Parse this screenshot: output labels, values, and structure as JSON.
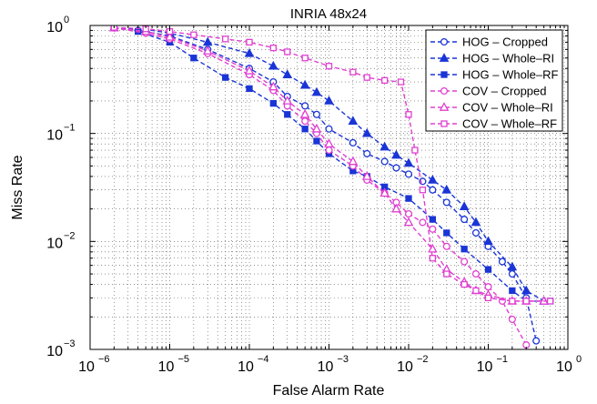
{
  "chart_data": {
    "type": "line",
    "title": "INRIA 48x24",
    "xlabel": "False Alarm Rate",
    "ylabel": "Miss Rate",
    "xscale": "log",
    "yscale": "log",
    "xlim": [
      1e-06,
      1
    ],
    "ylim": [
      0.001,
      1
    ],
    "grid": true,
    "legend_position": "top-right",
    "x_ticks": [
      {
        "base": "10",
        "exp": "−6",
        "value": 1e-06
      },
      {
        "base": "10",
        "exp": "−5",
        "value": 1e-05
      },
      {
        "base": "10",
        "exp": "−4",
        "value": 0.0001
      },
      {
        "base": "10",
        "exp": "−3",
        "value": 0.001
      },
      {
        "base": "10",
        "exp": "−2",
        "value": 0.01
      },
      {
        "base": "10",
        "exp": "−1",
        "value": 0.1
      },
      {
        "base": "10",
        "exp": "0",
        "value": 1
      }
    ],
    "y_ticks": [
      {
        "base": "10",
        "exp": "−3",
        "value": 0.001
      },
      {
        "base": "10",
        "exp": "−2",
        "value": 0.01
      },
      {
        "base": "10",
        "exp": "−1",
        "value": 0.1
      },
      {
        "base": "10",
        "exp": "0",
        "value": 1
      }
    ],
    "series": [
      {
        "name": "HOG – Cropped",
        "color": "#1a35d6",
        "marker": "circle-open",
        "x": [
          2e-06,
          4e-06,
          1e-05,
          3e-05,
          0.0001,
          0.0002,
          0.0003,
          0.0005,
          0.0007,
          0.001,
          0.002,
          0.003,
          0.005,
          0.007,
          0.01,
          0.015,
          0.02,
          0.03,
          0.05,
          0.07,
          0.1,
          0.15,
          0.2,
          0.3,
          0.4
        ],
        "y": [
          0.95,
          0.9,
          0.8,
          0.6,
          0.4,
          0.3,
          0.22,
          0.18,
          0.15,
          0.11,
          0.082,
          0.065,
          0.055,
          0.048,
          0.042,
          0.036,
          0.03,
          0.023,
          0.016,
          0.012,
          0.009,
          0.0065,
          0.005,
          0.003,
          0.0012
        ]
      },
      {
        "name": "HOG – Whole–RI",
        "color": "#1a35d6",
        "marker": "triangle",
        "x": [
          2e-06,
          5e-06,
          1e-05,
          3e-05,
          0.0001,
          0.0002,
          0.0003,
          0.0005,
          0.0007,
          0.001,
          0.002,
          0.003,
          0.005,
          0.007,
          0.01,
          0.02,
          0.03,
          0.05,
          0.07,
          0.1,
          0.2,
          0.3,
          0.5
        ],
        "y": [
          0.95,
          0.92,
          0.85,
          0.7,
          0.55,
          0.42,
          0.35,
          0.28,
          0.24,
          0.2,
          0.13,
          0.1,
          0.075,
          0.063,
          0.053,
          0.037,
          0.03,
          0.021,
          0.015,
          0.01,
          0.0058,
          0.0035,
          0.0028
        ]
      },
      {
        "name": "HOG – Whole–RF",
        "color": "#1a35d6",
        "marker": "square",
        "x": [
          2e-06,
          4e-06,
          1e-05,
          2e-05,
          5e-05,
          0.0001,
          0.0002,
          0.0003,
          0.0005,
          0.0007,
          0.001,
          0.002,
          0.003,
          0.005,
          0.01,
          0.02,
          0.03,
          0.05,
          0.1,
          0.2,
          0.3,
          0.6
        ],
        "y": [
          0.95,
          0.88,
          0.7,
          0.5,
          0.33,
          0.26,
          0.19,
          0.15,
          0.11,
          0.085,
          0.065,
          0.045,
          0.04,
          0.032,
          0.025,
          0.016,
          0.012,
          0.0085,
          0.0055,
          0.0035,
          0.0028,
          0.0028
        ]
      },
      {
        "name": "COV – Cropped",
        "color": "#e040d0",
        "marker": "circle-open",
        "x": [
          2e-06,
          5e-06,
          1e-05,
          3e-05,
          0.0001,
          0.0002,
          0.0003,
          0.0005,
          0.0007,
          0.001,
          0.002,
          0.003,
          0.005,
          0.007,
          0.01,
          0.015,
          0.02,
          0.03,
          0.05,
          0.07,
          0.1,
          0.15,
          0.2,
          0.3
        ],
        "y": [
          0.95,
          0.85,
          0.75,
          0.55,
          0.35,
          0.25,
          0.18,
          0.13,
          0.1,
          0.07,
          0.05,
          0.037,
          0.028,
          0.023,
          0.018,
          0.015,
          0.013,
          0.009,
          0.0065,
          0.005,
          0.0038,
          0.0028,
          0.0019,
          0.0011
        ]
      },
      {
        "name": "COV – Whole–RI",
        "color": "#e040d0",
        "marker": "triangle-open",
        "x": [
          2e-06,
          5e-06,
          1e-05,
          3e-05,
          0.0001,
          0.0002,
          0.0003,
          0.0005,
          0.0007,
          0.001,
          0.002,
          0.003,
          0.005,
          0.007,
          0.01,
          0.02,
          0.03,
          0.05,
          0.07,
          0.1,
          0.2,
          0.3,
          0.5
        ],
        "y": [
          0.95,
          0.88,
          0.78,
          0.58,
          0.38,
          0.27,
          0.2,
          0.15,
          0.11,
          0.08,
          0.055,
          0.04,
          0.028,
          0.02,
          0.015,
          0.0085,
          0.0055,
          0.0042,
          0.0035,
          0.0032,
          0.0028,
          0.0028,
          0.0028
        ]
      },
      {
        "name": "COV – Whole–RF",
        "color": "#e040d0",
        "marker": "square-open",
        "x": [
          2e-06,
          5e-06,
          1e-05,
          2e-05,
          5e-05,
          0.0001,
          0.0002,
          0.0003,
          0.0005,
          0.001,
          0.002,
          0.003,
          0.005,
          0.008,
          0.01,
          0.012,
          0.015,
          0.02,
          0.03,
          0.05,
          0.07,
          0.1,
          0.2,
          0.3,
          0.6
        ],
        "y": [
          0.96,
          0.93,
          0.88,
          0.82,
          0.75,
          0.7,
          0.62,
          0.57,
          0.5,
          0.42,
          0.37,
          0.33,
          0.31,
          0.3,
          0.15,
          0.07,
          0.03,
          0.007,
          0.005,
          0.004,
          0.0035,
          0.003,
          0.0028,
          0.0028,
          0.0028
        ]
      }
    ]
  }
}
